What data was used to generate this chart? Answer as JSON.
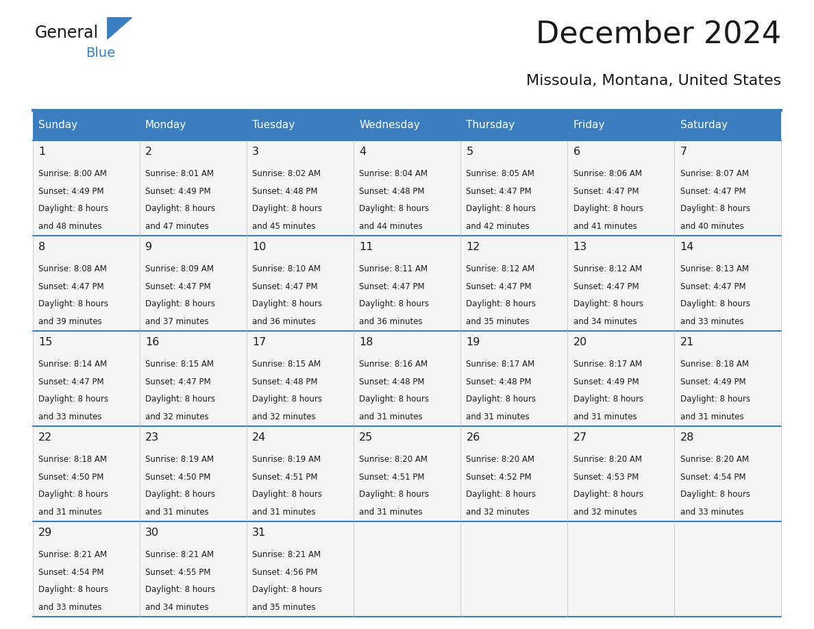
{
  "title": "December 2024",
  "subtitle": "Missoula, Montana, United States",
  "header_color": "#3a7ebf",
  "header_text_color": "#ffffff",
  "cell_bg_color": "#f5f5f5",
  "grid_line_color": "#3a7ebf",
  "day_headers": [
    "Sunday",
    "Monday",
    "Tuesday",
    "Wednesday",
    "Thursday",
    "Friday",
    "Saturday"
  ],
  "weeks": [
    [
      {
        "day": 1,
        "sunrise": "8:00 AM",
        "sunset": "4:49 PM",
        "daylight": "8 hours and 48 minutes"
      },
      {
        "day": 2,
        "sunrise": "8:01 AM",
        "sunset": "4:49 PM",
        "daylight": "8 hours and 47 minutes"
      },
      {
        "day": 3,
        "sunrise": "8:02 AM",
        "sunset": "4:48 PM",
        "daylight": "8 hours and 45 minutes"
      },
      {
        "day": 4,
        "sunrise": "8:04 AM",
        "sunset": "4:48 PM",
        "daylight": "8 hours and 44 minutes"
      },
      {
        "day": 5,
        "sunrise": "8:05 AM",
        "sunset": "4:47 PM",
        "daylight": "8 hours and 42 minutes"
      },
      {
        "day": 6,
        "sunrise": "8:06 AM",
        "sunset": "4:47 PM",
        "daylight": "8 hours and 41 minutes"
      },
      {
        "day": 7,
        "sunrise": "8:07 AM",
        "sunset": "4:47 PM",
        "daylight": "8 hours and 40 minutes"
      }
    ],
    [
      {
        "day": 8,
        "sunrise": "8:08 AM",
        "sunset": "4:47 PM",
        "daylight": "8 hours and 39 minutes"
      },
      {
        "day": 9,
        "sunrise": "8:09 AM",
        "sunset": "4:47 PM",
        "daylight": "8 hours and 37 minutes"
      },
      {
        "day": 10,
        "sunrise": "8:10 AM",
        "sunset": "4:47 PM",
        "daylight": "8 hours and 36 minutes"
      },
      {
        "day": 11,
        "sunrise": "8:11 AM",
        "sunset": "4:47 PM",
        "daylight": "8 hours and 36 minutes"
      },
      {
        "day": 12,
        "sunrise": "8:12 AM",
        "sunset": "4:47 PM",
        "daylight": "8 hours and 35 minutes"
      },
      {
        "day": 13,
        "sunrise": "8:12 AM",
        "sunset": "4:47 PM",
        "daylight": "8 hours and 34 minutes"
      },
      {
        "day": 14,
        "sunrise": "8:13 AM",
        "sunset": "4:47 PM",
        "daylight": "8 hours and 33 minutes"
      }
    ],
    [
      {
        "day": 15,
        "sunrise": "8:14 AM",
        "sunset": "4:47 PM",
        "daylight": "8 hours and 33 minutes"
      },
      {
        "day": 16,
        "sunrise": "8:15 AM",
        "sunset": "4:47 PM",
        "daylight": "8 hours and 32 minutes"
      },
      {
        "day": 17,
        "sunrise": "8:15 AM",
        "sunset": "4:48 PM",
        "daylight": "8 hours and 32 minutes"
      },
      {
        "day": 18,
        "sunrise": "8:16 AM",
        "sunset": "4:48 PM",
        "daylight": "8 hours and 31 minutes"
      },
      {
        "day": 19,
        "sunrise": "8:17 AM",
        "sunset": "4:48 PM",
        "daylight": "8 hours and 31 minutes"
      },
      {
        "day": 20,
        "sunrise": "8:17 AM",
        "sunset": "4:49 PM",
        "daylight": "8 hours and 31 minutes"
      },
      {
        "day": 21,
        "sunrise": "8:18 AM",
        "sunset": "4:49 PM",
        "daylight": "8 hours and 31 minutes"
      }
    ],
    [
      {
        "day": 22,
        "sunrise": "8:18 AM",
        "sunset": "4:50 PM",
        "daylight": "8 hours and 31 minutes"
      },
      {
        "day": 23,
        "sunrise": "8:19 AM",
        "sunset": "4:50 PM",
        "daylight": "8 hours and 31 minutes"
      },
      {
        "day": 24,
        "sunrise": "8:19 AM",
        "sunset": "4:51 PM",
        "daylight": "8 hours and 31 minutes"
      },
      {
        "day": 25,
        "sunrise": "8:20 AM",
        "sunset": "4:51 PM",
        "daylight": "8 hours and 31 minutes"
      },
      {
        "day": 26,
        "sunrise": "8:20 AM",
        "sunset": "4:52 PM",
        "daylight": "8 hours and 32 minutes"
      },
      {
        "day": 27,
        "sunrise": "8:20 AM",
        "sunset": "4:53 PM",
        "daylight": "8 hours and 32 minutes"
      },
      {
        "day": 28,
        "sunrise": "8:20 AM",
        "sunset": "4:54 PM",
        "daylight": "8 hours and 33 minutes"
      }
    ],
    [
      {
        "day": 29,
        "sunrise": "8:21 AM",
        "sunset": "4:54 PM",
        "daylight": "8 hours and 33 minutes"
      },
      {
        "day": 30,
        "sunrise": "8:21 AM",
        "sunset": "4:55 PM",
        "daylight": "8 hours and 34 minutes"
      },
      {
        "day": 31,
        "sunrise": "8:21 AM",
        "sunset": "4:56 PM",
        "daylight": "8 hours and 35 minutes"
      },
      null,
      null,
      null,
      null
    ]
  ]
}
